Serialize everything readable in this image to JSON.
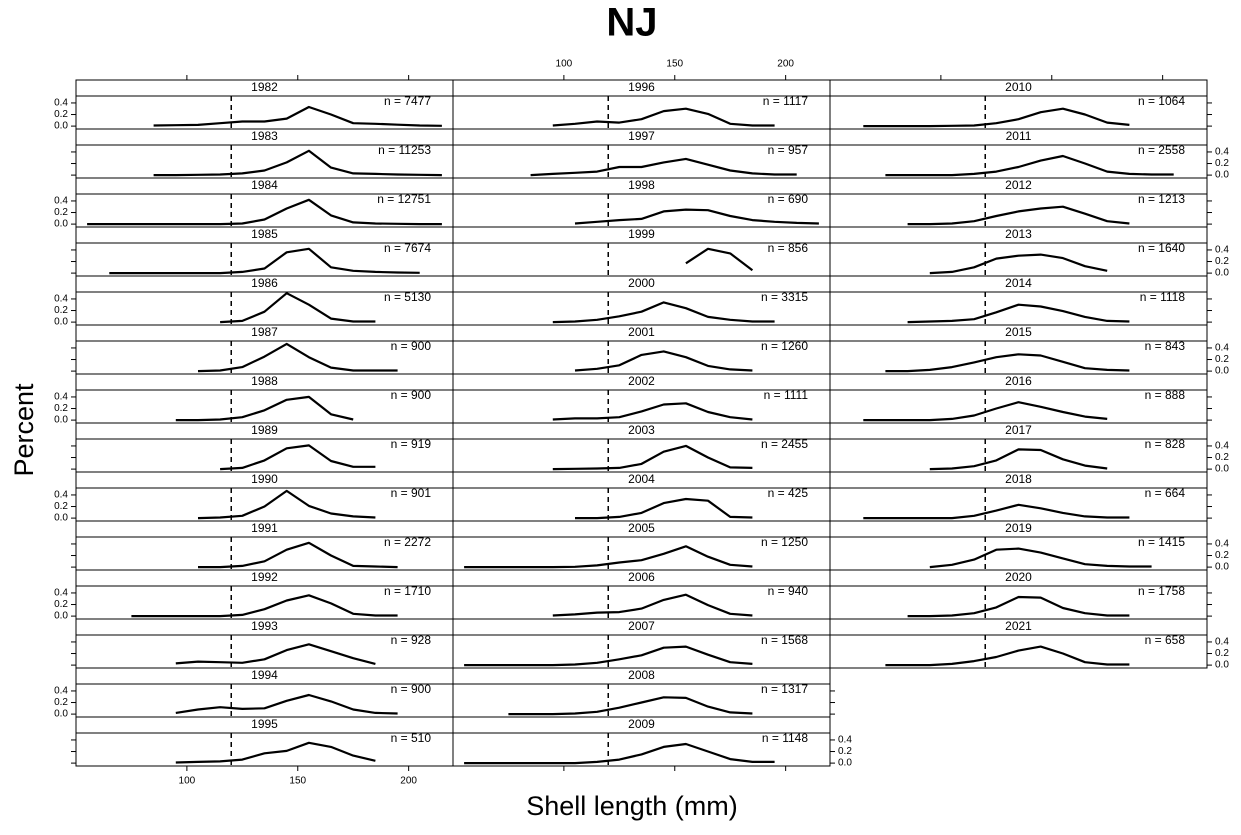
{
  "chart_data": {
    "type": "line",
    "title": "NJ",
    "x_label": "Shell length (mm)",
    "y_label": "Percent",
    "xlim": [
      50,
      220
    ],
    "ylim": [
      -0.05,
      0.52
    ],
    "xticks": [
      100,
      150,
      200
    ],
    "yticks": [
      {
        "value": 0,
        "label": "0.0"
      },
      0.2,
      0.4
    ],
    "reference_x": 120,
    "color": "#000000",
    "panels": [
      {
        "name": "1982",
        "label": "n = 7477",
        "x": [
          85,
          95,
          105,
          115,
          125,
          135,
          145,
          155,
          165,
          175,
          185,
          195,
          205,
          215
        ],
        "values": [
          0.01,
          0.015,
          0.02,
          0.05,
          0.08,
          0.08,
          0.13,
          0.33,
          0.2,
          0.05,
          0.04,
          0.025,
          0.01,
          0.005
        ]
      },
      {
        "name": "1983",
        "label": "n = 11253",
        "x": [
          85,
          95,
          105,
          115,
          125,
          135,
          145,
          155,
          165,
          175,
          185,
          195,
          205,
          215
        ],
        "values": [
          0,
          0,
          0.005,
          0.01,
          0.03,
          0.08,
          0.22,
          0.42,
          0.13,
          0.03,
          0.02,
          0.01,
          0.005,
          0
        ]
      },
      {
        "name": "1984",
        "label": "n = 12751",
        "x": [
          55,
          65,
          75,
          85,
          95,
          105,
          115,
          125,
          135,
          145,
          155,
          165,
          175,
          185,
          195,
          205,
          215
        ],
        "values": [
          0,
          0,
          0,
          0,
          0,
          0,
          0,
          0.01,
          0.08,
          0.27,
          0.42,
          0.15,
          0.03,
          0.01,
          0.005,
          0,
          0
        ]
      },
      {
        "name": "1985",
        "label": "n = 7674",
        "x": [
          65,
          75,
          85,
          95,
          105,
          115,
          125,
          135,
          145,
          155,
          165,
          175,
          185,
          195,
          205
        ],
        "values": [
          0,
          0,
          0,
          0,
          0,
          0,
          0.02,
          0.08,
          0.36,
          0.42,
          0.1,
          0.04,
          0.02,
          0.01,
          0.005
        ]
      },
      {
        "name": "1986",
        "label": "n = 5130",
        "x": [
          115,
          125,
          135,
          145,
          155,
          165,
          175,
          185
        ],
        "values": [
          0,
          0.02,
          0.18,
          0.5,
          0.3,
          0.06,
          0.01,
          0.01
        ]
      },
      {
        "name": "1987",
        "label": "n = 900",
        "x": [
          105,
          115,
          125,
          135,
          145,
          155,
          165,
          175,
          185,
          195
        ],
        "values": [
          0,
          0.01,
          0.07,
          0.25,
          0.47,
          0.24,
          0.06,
          0.01,
          0.01,
          0.01
        ]
      },
      {
        "name": "1988",
        "label": "n = 900",
        "x": [
          95,
          105,
          115,
          125,
          135,
          145,
          155,
          165,
          175
        ],
        "values": [
          0,
          0,
          0.01,
          0.05,
          0.17,
          0.35,
          0.4,
          0.1,
          0.01
        ]
      },
      {
        "name": "1989",
        "label": "n = 919",
        "x": [
          115,
          125,
          135,
          145,
          155,
          165,
          175,
          185
        ],
        "values": [
          0,
          0.02,
          0.15,
          0.36,
          0.41,
          0.14,
          0.04,
          0.04
        ]
      },
      {
        "name": "1990",
        "label": "n = 901",
        "x": [
          105,
          115,
          125,
          135,
          145,
          155,
          165,
          175,
          185
        ],
        "values": [
          0,
          0.01,
          0.04,
          0.2,
          0.47,
          0.21,
          0.08,
          0.03,
          0.01
        ]
      },
      {
        "name": "1991",
        "label": "n = 2272",
        "x": [
          105,
          115,
          125,
          135,
          145,
          155,
          165,
          175,
          185,
          195
        ],
        "values": [
          0,
          0,
          0.02,
          0.1,
          0.3,
          0.42,
          0.2,
          0.02,
          0.01,
          0
        ]
      },
      {
        "name": "1992",
        "label": "n = 1710",
        "x": [
          75,
          85,
          95,
          105,
          115,
          125,
          135,
          145,
          155,
          165,
          175,
          185,
          195
        ],
        "values": [
          0,
          0,
          0,
          0,
          0,
          0.02,
          0.12,
          0.27,
          0.36,
          0.22,
          0.04,
          0.01,
          0.01
        ]
      },
      {
        "name": "1993",
        "label": "n = 928",
        "x": [
          95,
          105,
          115,
          125,
          135,
          145,
          155,
          165,
          175,
          185
        ],
        "values": [
          0.03,
          0.06,
          0.05,
          0.04,
          0.1,
          0.26,
          0.36,
          0.24,
          0.12,
          0.02
        ]
      },
      {
        "name": "1994",
        "label": "n = 900",
        "x": [
          95,
          105,
          115,
          125,
          135,
          145,
          155,
          165,
          175,
          185,
          195
        ],
        "values": [
          0.02,
          0.08,
          0.12,
          0.09,
          0.1,
          0.23,
          0.33,
          0.22,
          0.08,
          0.02,
          0.01
        ]
      },
      {
        "name": "1995",
        "label": "n = 510",
        "x": [
          95,
          105,
          115,
          125,
          135,
          145,
          155,
          165,
          175,
          185
        ],
        "values": [
          0.01,
          0.02,
          0.03,
          0.06,
          0.17,
          0.21,
          0.35,
          0.28,
          0.13,
          0.04
        ]
      },
      {
        "name": "1996",
        "label": "n = 1117",
        "x": [
          95,
          105,
          115,
          125,
          135,
          145,
          155,
          165,
          175,
          185,
          195
        ],
        "values": [
          0.01,
          0.04,
          0.08,
          0.06,
          0.12,
          0.26,
          0.3,
          0.21,
          0.04,
          0.01,
          0.01
        ]
      },
      {
        "name": "1997",
        "label": "n = 957",
        "x": [
          85,
          95,
          105,
          115,
          125,
          135,
          145,
          155,
          165,
          175,
          185,
          195,
          205
        ],
        "values": [
          0,
          0.02,
          0.04,
          0.06,
          0.14,
          0.14,
          0.22,
          0.28,
          0.18,
          0.08,
          0.03,
          0.01,
          0.01
        ]
      },
      {
        "name": "1998",
        "label": "n = 690",
        "x": [
          105,
          115,
          125,
          135,
          145,
          155,
          165,
          175,
          185,
          195,
          205,
          215
        ],
        "values": [
          0.01,
          0.04,
          0.07,
          0.09,
          0.22,
          0.25,
          0.24,
          0.14,
          0.07,
          0.04,
          0.02,
          0.01
        ]
      },
      {
        "name": "1999",
        "label": "n = 856",
        "x": [
          155,
          165,
          175,
          185
        ],
        "values": [
          0.17,
          0.42,
          0.34,
          0.05
        ]
      },
      {
        "name": "2000",
        "label": "n = 3315",
        "x": [
          95,
          105,
          115,
          125,
          135,
          145,
          155,
          165,
          175,
          185,
          195
        ],
        "values": [
          0,
          0.01,
          0.04,
          0.1,
          0.18,
          0.34,
          0.24,
          0.09,
          0.04,
          0.01,
          0.01
        ]
      },
      {
        "name": "2001",
        "label": "n = 1260",
        "x": [
          105,
          115,
          125,
          135,
          145,
          155,
          165,
          175,
          185
        ],
        "values": [
          0.01,
          0.04,
          0.1,
          0.28,
          0.34,
          0.24,
          0.09,
          0.03,
          0.01
        ]
      },
      {
        "name": "2002",
        "label": "n = 1111",
        "x": [
          95,
          105,
          115,
          125,
          135,
          145,
          155,
          165,
          175,
          185
        ],
        "values": [
          0.01,
          0.03,
          0.03,
          0.05,
          0.15,
          0.27,
          0.29,
          0.14,
          0.05,
          0.01
        ]
      },
      {
        "name": "2003",
        "label": "n = 2455",
        "x": [
          95,
          105,
          115,
          125,
          135,
          145,
          155,
          165,
          175,
          185
        ],
        "values": [
          0,
          0.005,
          0.01,
          0.02,
          0.09,
          0.3,
          0.4,
          0.2,
          0.03,
          0.02
        ]
      },
      {
        "name": "2004",
        "label": "n = 425",
        "x": [
          105,
          115,
          125,
          135,
          145,
          155,
          165,
          175,
          185
        ],
        "values": [
          0,
          0,
          0.02,
          0.09,
          0.26,
          0.33,
          0.3,
          0.02,
          0.01
        ]
      },
      {
        "name": "2005",
        "label": "n = 1250",
        "x": [
          55,
          65,
          75,
          85,
          95,
          105,
          115,
          125,
          135,
          145,
          155,
          165,
          175,
          185
        ],
        "values": [
          0,
          0,
          0,
          0,
          0,
          0.005,
          0.03,
          0.08,
          0.12,
          0.23,
          0.36,
          0.18,
          0.04,
          0.01
        ]
      },
      {
        "name": "2006",
        "label": "n = 940",
        "x": [
          95,
          105,
          115,
          125,
          135,
          145,
          155,
          165,
          175,
          185
        ],
        "values": [
          0.01,
          0.03,
          0.06,
          0.07,
          0.13,
          0.28,
          0.37,
          0.19,
          0.04,
          0.01
        ]
      },
      {
        "name": "2007",
        "label": "n = 1568",
        "x": [
          55,
          65,
          75,
          85,
          95,
          105,
          115,
          125,
          135,
          145,
          155,
          165,
          175,
          185
        ],
        "values": [
          0,
          0,
          0,
          0,
          0,
          0.01,
          0.04,
          0.1,
          0.17,
          0.3,
          0.32,
          0.18,
          0.05,
          0.02
        ]
      },
      {
        "name": "2008",
        "label": "n = 1317",
        "x": [
          75,
          85,
          95,
          105,
          115,
          125,
          135,
          145,
          155,
          165,
          175,
          185
        ],
        "values": [
          0,
          0,
          0,
          0.01,
          0.04,
          0.11,
          0.2,
          0.29,
          0.28,
          0.13,
          0.03,
          0.01
        ]
      },
      {
        "name": "2009",
        "label": "n = 1148",
        "x": [
          55,
          65,
          75,
          85,
          95,
          105,
          115,
          125,
          135,
          145,
          155,
          165,
          175,
          185,
          195
        ],
        "values": [
          0,
          0,
          0,
          0,
          0,
          0,
          0.02,
          0.06,
          0.15,
          0.28,
          0.33,
          0.2,
          0.07,
          0.02,
          0.02
        ]
      },
      {
        "name": "2010",
        "label": "n = 1064",
        "x": [
          65,
          75,
          85,
          95,
          105,
          115,
          125,
          135,
          145,
          155,
          165,
          175,
          185
        ],
        "values": [
          0,
          0,
          0,
          0,
          0.005,
          0.01,
          0.05,
          0.12,
          0.24,
          0.3,
          0.2,
          0.06,
          0.02
        ]
      },
      {
        "name": "2011",
        "label": "n = 2558",
        "x": [
          75,
          85,
          95,
          105,
          115,
          125,
          135,
          145,
          155,
          165,
          175,
          185,
          195,
          205
        ],
        "values": [
          0,
          0,
          0,
          0,
          0.02,
          0.06,
          0.14,
          0.25,
          0.33,
          0.2,
          0.06,
          0.02,
          0.01,
          0.01
        ]
      },
      {
        "name": "2012",
        "label": "n = 1213",
        "x": [
          85,
          95,
          105,
          115,
          125,
          135,
          145,
          155,
          165,
          175,
          185
        ],
        "values": [
          0,
          0,
          0.01,
          0.05,
          0.14,
          0.22,
          0.27,
          0.3,
          0.18,
          0.05,
          0.01
        ]
      },
      {
        "name": "2013",
        "label": "n = 1640",
        "x": [
          95,
          105,
          115,
          125,
          135,
          145,
          155,
          165,
          175
        ],
        "values": [
          0,
          0.02,
          0.1,
          0.25,
          0.3,
          0.32,
          0.26,
          0.12,
          0.04
        ]
      },
      {
        "name": "2014",
        "label": "n = 1118",
        "x": [
          85,
          95,
          105,
          115,
          125,
          135,
          145,
          155,
          165,
          175,
          185
        ],
        "values": [
          0,
          0.01,
          0.02,
          0.05,
          0.17,
          0.3,
          0.27,
          0.19,
          0.09,
          0.02,
          0.01
        ]
      },
      {
        "name": "2015",
        "label": "n = 843",
        "x": [
          75,
          85,
          95,
          105,
          115,
          125,
          135,
          145,
          155,
          165,
          175,
          185
        ],
        "values": [
          0,
          0,
          0.02,
          0.07,
          0.15,
          0.24,
          0.29,
          0.27,
          0.16,
          0.05,
          0.02,
          0.01
        ]
      },
      {
        "name": "2016",
        "label": "n = 888",
        "x": [
          65,
          75,
          85,
          95,
          105,
          115,
          125,
          135,
          145,
          155,
          165,
          175
        ],
        "values": [
          0,
          0,
          0,
          0,
          0.02,
          0.08,
          0.2,
          0.31,
          0.23,
          0.14,
          0.06,
          0.02
        ]
      },
      {
        "name": "2017",
        "label": "n = 828",
        "x": [
          95,
          105,
          115,
          125,
          135,
          145,
          155,
          165,
          175
        ],
        "values": [
          0,
          0.01,
          0.05,
          0.15,
          0.34,
          0.33,
          0.17,
          0.06,
          0.01
        ]
      },
      {
        "name": "2018",
        "label": "n = 664",
        "x": [
          65,
          75,
          85,
          95,
          105,
          115,
          125,
          135,
          145,
          155,
          165,
          175,
          185
        ],
        "values": [
          0,
          0,
          0,
          0,
          0,
          0.04,
          0.13,
          0.23,
          0.17,
          0.09,
          0.03,
          0.01,
          0.01
        ]
      },
      {
        "name": "2019",
        "label": "n = 1415",
        "x": [
          95,
          105,
          115,
          125,
          135,
          145,
          155,
          165,
          175,
          185,
          195
        ],
        "values": [
          0,
          0.04,
          0.13,
          0.3,
          0.32,
          0.25,
          0.15,
          0.05,
          0.02,
          0.01,
          0.01
        ]
      },
      {
        "name": "2020",
        "label": "n = 1758",
        "x": [
          85,
          95,
          105,
          115,
          125,
          135,
          145,
          155,
          165,
          175,
          185
        ],
        "values": [
          0,
          0,
          0.01,
          0.05,
          0.15,
          0.33,
          0.32,
          0.14,
          0.05,
          0.01,
          0.01
        ]
      },
      {
        "name": "2021",
        "label": "n = 658",
        "x": [
          75,
          85,
          95,
          105,
          115,
          125,
          135,
          145,
          155,
          165,
          175,
          185
        ],
        "values": [
          0,
          0,
          0,
          0.02,
          0.07,
          0.14,
          0.25,
          0.32,
          0.2,
          0.05,
          0.01,
          0.01
        ]
      }
    ]
  }
}
